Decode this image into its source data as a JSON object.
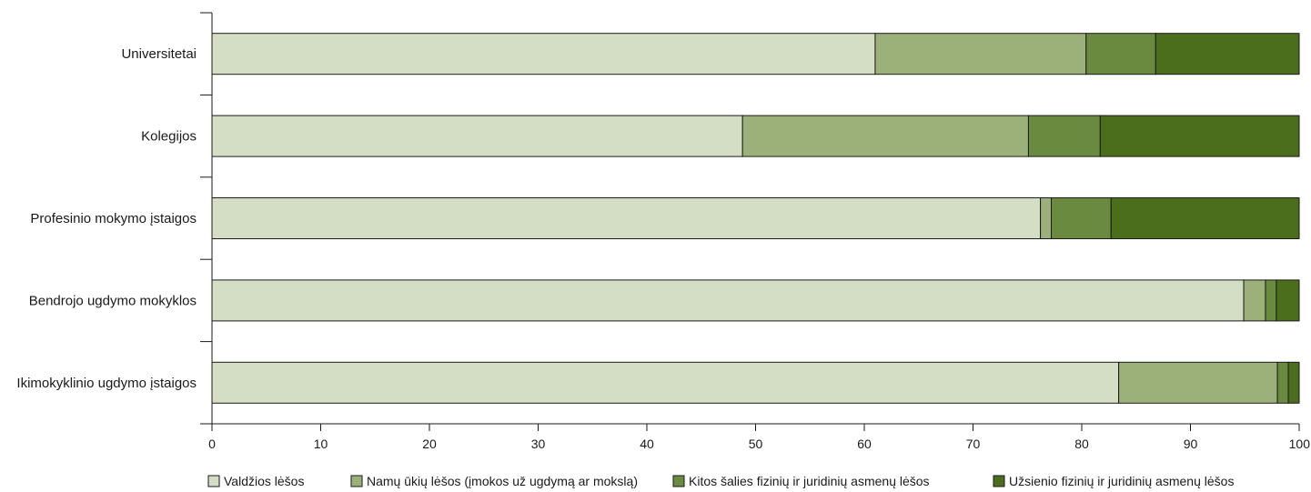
{
  "chart_data": {
    "type": "bar",
    "orientation": "horizontal",
    "stacked": true,
    "categories": [
      "Universitetai",
      "Kolegijos",
      "Profesinio mokymo įstaigos",
      "Bendrojo ugdymo mokyklos",
      "Ikimokyklinio ugdymo įstaigos"
    ],
    "series": [
      {
        "name": "Valdžios lėšos",
        "color": "#d3dec5",
        "values": [
          61.0,
          48.8,
          76.2,
          94.9,
          83.4
        ]
      },
      {
        "name": "Namų ūkių lėšos (įmokos už ugdymą ar mokslą)",
        "color": "#9cb07a",
        "values": [
          19.4,
          26.3,
          1.0,
          2.0,
          14.6
        ]
      },
      {
        "name": "Kitos šalies fizinių ir juridinių asmenų lėšos",
        "color": "#6a8a3f",
        "values": [
          6.4,
          6.6,
          5.5,
          1.0,
          1.0
        ]
      },
      {
        "name": "Užsienio fizinių ir juridinių asmenų lėšos",
        "color": "#4a6e1c",
        "values": [
          13.2,
          18.3,
          17.3,
          2.1,
          1.0
        ]
      }
    ],
    "xlim": [
      0,
      100
    ],
    "xticks": [
      "0",
      "10",
      "20",
      "30",
      "40",
      "50",
      "60",
      "70",
      "80",
      "90",
      "100"
    ],
    "legend_position": "bottom",
    "grid": false
  }
}
